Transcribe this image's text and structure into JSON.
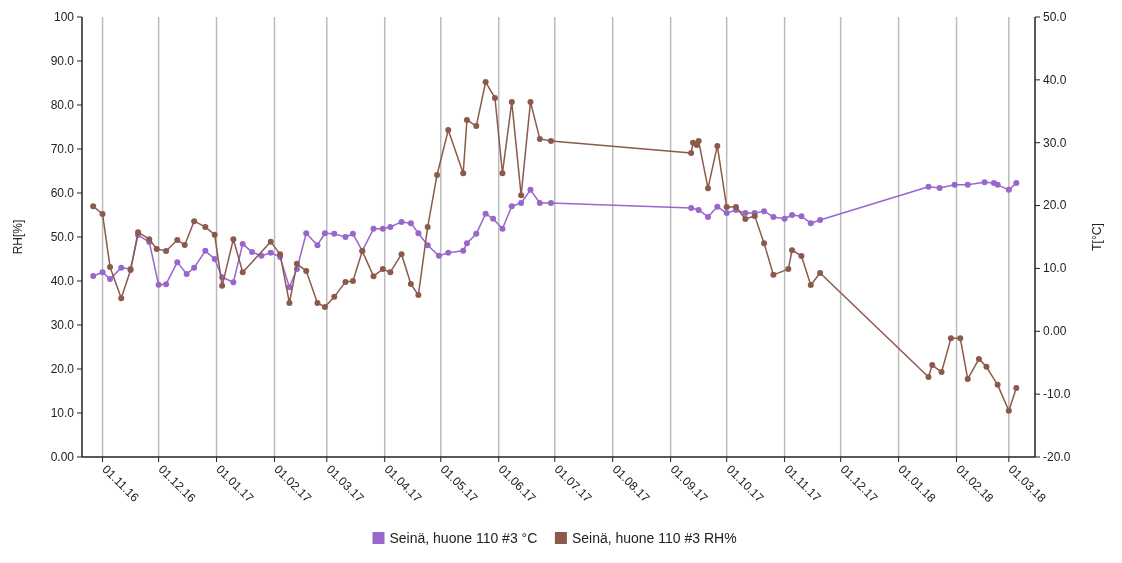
{
  "chart_data": {
    "type": "line",
    "ylabel": "RH[%]",
    "y2label": "T[°C]",
    "xlim": [
      "2016-10-21",
      "2018-03-15"
    ],
    "xticks": [
      {
        "value": "2016-11-01",
        "label": "01.11.16"
      },
      {
        "value": "2016-12-01",
        "label": "01.12.16"
      },
      {
        "value": "2017-01-01",
        "label": "01.01.17"
      },
      {
        "value": "2017-02-01",
        "label": "01.02.17"
      },
      {
        "value": "2017-03-01",
        "label": "01.03.17"
      },
      {
        "value": "2017-04-01",
        "label": "01.04.17"
      },
      {
        "value": "2017-05-01",
        "label": "01.05.17"
      },
      {
        "value": "2017-06-01",
        "label": "01.06.17"
      },
      {
        "value": "2017-07-01",
        "label": "01.07.17"
      },
      {
        "value": "2017-08-01",
        "label": "01.08.17"
      },
      {
        "value": "2017-09-01",
        "label": "01.09.17"
      },
      {
        "value": "2017-10-01",
        "label": "01.10.17"
      },
      {
        "value": "2017-11-01",
        "label": "01.11.17"
      },
      {
        "value": "2017-12-01",
        "label": "01.12.17"
      },
      {
        "value": "2018-01-01",
        "label": "01.01.18"
      },
      {
        "value": "2018-02-01",
        "label": "01.02.18"
      },
      {
        "value": "2018-03-01",
        "label": "01.03.18"
      }
    ],
    "ylim": [
      0,
      100
    ],
    "yticks": [
      {
        "value": 0,
        "label": "0.00"
      },
      {
        "value": 10,
        "label": "10.0"
      },
      {
        "value": 20,
        "label": "20.0"
      },
      {
        "value": 30,
        "label": "30.0"
      },
      {
        "value": 40,
        "label": "40.0"
      },
      {
        "value": 50,
        "label": "50.0"
      },
      {
        "value": 60,
        "label": "60.0"
      },
      {
        "value": 70,
        "label": "70.0"
      },
      {
        "value": 80,
        "label": "80.0"
      },
      {
        "value": 90,
        "label": "90.0"
      },
      100
    ],
    "y2lim": [
      -20,
      50
    ],
    "y2ticks": [
      {
        "value": -20,
        "label": "-20.0"
      },
      {
        "value": -10,
        "label": "-10.0"
      },
      {
        "value": 0,
        "label": "0.00"
      },
      {
        "value": 10,
        "label": "10.0"
      },
      {
        "value": 20,
        "label": "20.0"
      },
      {
        "value": 30,
        "label": "30.0"
      },
      {
        "value": 40,
        "label": "40.0"
      },
      {
        "value": 50,
        "label": "50.0"
      }
    ],
    "grid": "x",
    "legend": "bottom",
    "marker": "circle",
    "line_style": "solid",
    "series": [
      {
        "name": "Seinä, huone 110 #3 °C",
        "color": "#9966cc",
        "axis": "y2",
        "x": [
          "2016-10-27",
          "2016-11-01",
          "2016-11-05",
          "2016-11-11",
          "2016-11-16",
          "2016-11-20",
          "2016-11-26",
          "2016-12-01",
          "2016-12-05",
          "2016-12-11",
          "2016-12-16",
          "2016-12-20",
          "2016-12-26",
          "2016-12-31",
          "2017-01-04",
          "2017-01-10",
          "2017-01-15",
          "2017-01-20",
          "2017-01-25",
          "2017-01-30",
          "2017-02-04",
          "2017-02-09",
          "2017-02-13",
          "2017-02-18",
          "2017-02-24",
          "2017-02-28",
          "2017-03-05",
          "2017-03-11",
          "2017-03-15",
          "2017-03-20",
          "2017-03-26",
          "2017-03-31",
          "2017-04-04",
          "2017-04-10",
          "2017-04-15",
          "2017-04-19",
          "2017-04-24",
          "2017-04-30",
          "2017-05-05",
          "2017-05-13",
          "2017-05-15",
          "2017-05-20",
          "2017-05-25",
          "2017-05-29",
          "2017-06-03",
          "2017-06-08",
          "2017-06-13",
          "2017-06-18",
          "2017-06-23",
          "2017-06-29",
          "2017-09-12",
          "2017-09-16",
          "2017-09-21",
          "2017-09-26",
          "2017-10-01",
          "2017-10-06",
          "2017-10-11",
          "2017-10-16",
          "2017-10-21",
          "2017-10-26",
          "2017-11-01",
          "2017-11-05",
          "2017-11-10",
          "2017-11-15",
          "2017-11-20",
          "2018-01-17",
          "2018-01-23",
          "2018-01-31",
          "2018-02-07",
          "2018-02-16",
          "2018-02-21",
          "2018-02-23",
          "2018-03-01",
          "2018-03-05"
        ],
        "values": [
          8.8,
          9.4,
          8.3,
          10.1,
          9.9,
          15.3,
          14.2,
          7.4,
          7.5,
          11.0,
          9.1,
          10.1,
          12.8,
          11.5,
          8.6,
          7.8,
          13.9,
          12.6,
          12.0,
          12.5,
          11.8,
          7.0,
          9.9,
          15.6,
          13.7,
          15.6,
          15.5,
          15.0,
          15.5,
          12.8,
          16.3,
          16.3,
          16.6,
          17.4,
          17.2,
          15.6,
          13.7,
          12.0,
          12.5,
          12.8,
          14.0,
          15.5,
          18.7,
          17.9,
          16.3,
          19.9,
          20.4,
          22.5,
          20.4,
          20.4,
          19.6,
          19.3,
          18.2,
          19.8,
          18.8,
          19.3,
          18.8,
          18.8,
          19.1,
          18.2,
          17.9,
          18.5,
          18.3,
          17.2,
          17.7,
          23.0,
          22.8,
          23.3,
          23.3,
          23.7,
          23.6,
          23.3,
          22.5,
          23.6
        ]
      },
      {
        "name": "Seinä, huone 110 #3 RH%",
        "color": "#8b5a4a",
        "x": [
          "2016-10-27",
          "2016-11-01",
          "2016-11-05",
          "2016-11-11",
          "2016-11-16",
          "2016-11-20",
          "2016-11-26",
          "2016-11-30",
          "2016-12-05",
          "2016-12-11",
          "2016-12-15",
          "2016-12-20",
          "2016-12-26",
          "2016-12-31",
          "2017-01-04",
          "2017-01-10",
          "2017-01-15",
          "2017-01-30",
          "2017-02-04",
          "2017-02-09",
          "2017-02-13",
          "2017-02-18",
          "2017-02-24",
          "2017-02-28",
          "2017-03-05",
          "2017-03-11",
          "2017-03-15",
          "2017-03-20",
          "2017-03-26",
          "2017-03-31",
          "2017-04-04",
          "2017-04-10",
          "2017-04-15",
          "2017-04-19",
          "2017-04-24",
          "2017-04-29",
          "2017-05-05",
          "2017-05-13",
          "2017-05-15",
          "2017-05-20",
          "2017-05-25",
          "2017-05-30",
          "2017-06-03",
          "2017-06-08",
          "2017-06-13",
          "2017-06-18",
          "2017-06-23",
          "2017-06-29",
          "2017-09-12",
          "2017-09-13",
          "2017-09-15",
          "2017-09-16",
          "2017-09-21",
          "2017-09-26",
          "2017-10-01",
          "2017-10-06",
          "2017-10-11",
          "2017-10-16",
          "2017-10-21",
          "2017-10-26",
          "2017-11-03",
          "2017-11-05",
          "2017-11-10",
          "2017-11-15",
          "2017-11-20",
          "2018-01-17",
          "2018-01-19",
          "2018-01-24",
          "2018-01-29",
          "2018-02-03",
          "2018-02-07",
          "2018-02-13",
          "2018-02-17",
          "2018-02-23",
          "2018-03-01",
          "2018-03-05"
        ],
        "values": [
          57.0,
          55.2,
          43.2,
          36.1,
          42.5,
          51.1,
          49.5,
          47.3,
          46.8,
          49.3,
          48.2,
          53.6,
          52.3,
          50.5,
          38.9,
          49.5,
          42.0,
          48.9,
          46.1,
          35.0,
          43.9,
          42.3,
          35.0,
          34.1,
          36.4,
          39.8,
          40.0,
          46.8,
          41.1,
          42.7,
          42.0,
          46.1,
          39.3,
          36.8,
          52.3,
          64.1,
          74.3,
          64.5,
          76.6,
          75.2,
          85.2,
          81.6,
          64.5,
          80.7,
          59.5,
          80.7,
          72.3,
          71.8,
          69.1,
          71.4,
          70.9,
          71.8,
          61.1,
          70.7,
          56.8,
          56.8,
          54.1,
          54.8,
          48.6,
          41.4,
          42.7,
          47.0,
          45.7,
          39.1,
          41.8,
          18.2,
          20.9,
          19.3,
          27.0,
          27.0,
          17.7,
          22.3,
          20.5,
          16.4,
          10.5,
          15.7
        ]
      }
    ]
  }
}
